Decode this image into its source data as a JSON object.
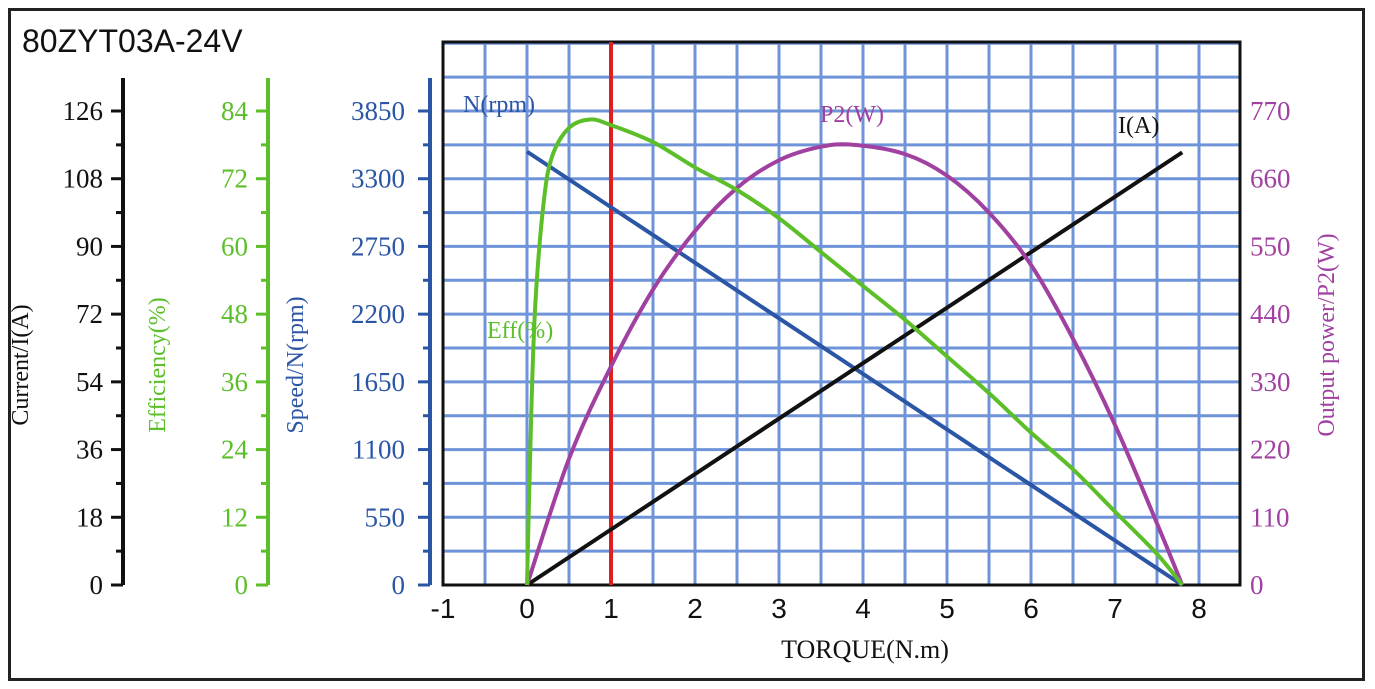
{
  "chart_data": {
    "type": "line",
    "title": "80ZYT03A-24V",
    "xlabel": "TORQUE(N.m)",
    "xlim": [
      -1,
      8.5
    ],
    "x_ticks": [
      "-1",
      "0",
      "1",
      "2",
      "3",
      "4",
      "5",
      "6",
      "7",
      "8"
    ],
    "grid": true,
    "marker_x": 1,
    "axes": [
      {
        "id": "current",
        "label": "Current/I(A)",
        "color": "#111111",
        "ticks": [
          "0",
          "18",
          "36",
          "54",
          "72",
          "90",
          "108",
          "126"
        ],
        "max": 126
      },
      {
        "id": "efficiency",
        "label": "Efficiency(%)",
        "color": "#5cbf2a",
        "ticks": [
          "0",
          "12",
          "24",
          "36",
          "48",
          "60",
          "72",
          "84"
        ],
        "max": 84
      },
      {
        "id": "speed",
        "label": "Speed/N(rpm)",
        "color": "#2b55a5",
        "ticks": [
          "0",
          "550",
          "1100",
          "1650",
          "2200",
          "2750",
          "3300",
          "3850"
        ],
        "max": 3850
      },
      {
        "id": "power",
        "label": "Output power/P2(W)",
        "color": "#a040a0",
        "ticks": [
          "0",
          "110",
          "220",
          "330",
          "440",
          "550",
          "660",
          "770"
        ],
        "max": 770
      }
    ],
    "series": [
      {
        "name": "N(rpm)",
        "axis": "speed",
        "color": "#2b55a5",
        "x": [
          0,
          7.8
        ],
        "y": [
          3520,
          0
        ]
      },
      {
        "name": "I(A)",
        "axis": "current",
        "color": "#111111",
        "x": [
          0,
          7.8
        ],
        "y": [
          0,
          115
        ]
      },
      {
        "name": "P2(W)",
        "axis": "power",
        "color": "#a040a0",
        "x": [
          0,
          0.5,
          1,
          1.5,
          2,
          2.5,
          3,
          3.5,
          3.9,
          4.5,
          5,
          5.5,
          6,
          6.5,
          7,
          7.5,
          7.8
        ],
        "y": [
          0,
          205,
          355,
          480,
          575,
          645,
          690,
          712,
          715,
          700,
          665,
          605,
          520,
          400,
          260,
          100,
          0
        ]
      },
      {
        "name": "Eff(%)",
        "axis": "efficiency",
        "color": "#5cbf2a",
        "x": [
          0,
          0.05,
          0.1,
          0.2,
          0.3,
          0.5,
          0.75,
          1,
          1.5,
          2,
          2.5,
          3,
          3.5,
          4,
          4.5,
          5,
          5.5,
          6,
          6.5,
          7,
          7.5,
          7.8
        ],
        "y": [
          0,
          30,
          50,
          68,
          76,
          81,
          82.5,
          81.5,
          78.5,
          74,
          70,
          65,
          59,
          53,
          47,
          40.5,
          34,
          27,
          20.5,
          13,
          5.5,
          0
        ]
      }
    ],
    "curve_labels": {
      "speed": "N(rpm)",
      "power": "P2(W)",
      "current": "I(A)",
      "efficiency": "Eff(%)"
    }
  }
}
